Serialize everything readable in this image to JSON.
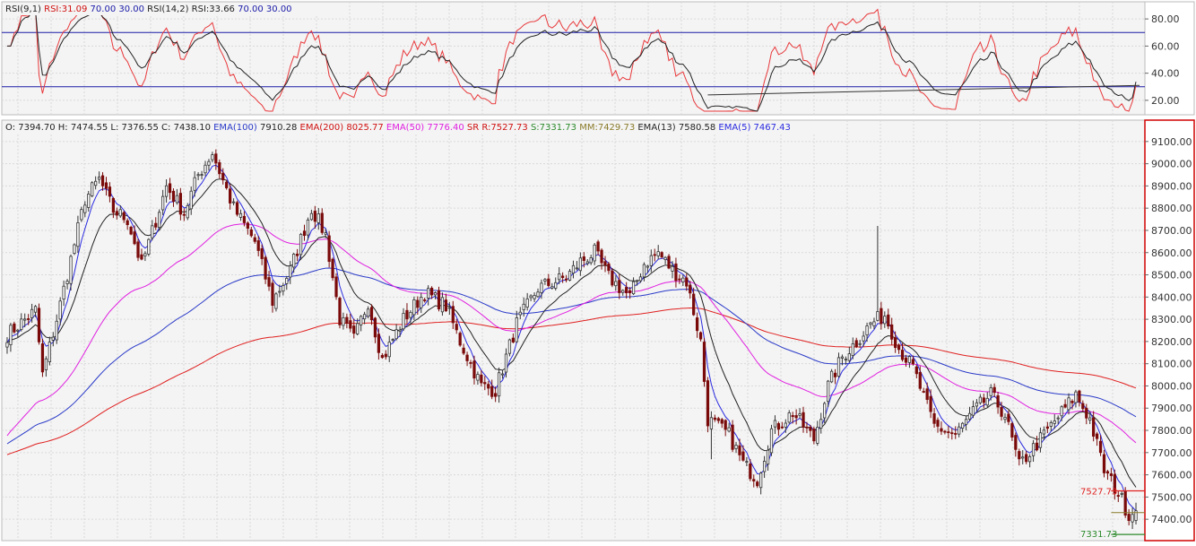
{
  "colors": {
    "background": "#f4f4f4",
    "panel_border": "#bbbbbb",
    "price_axis_border": "#d00000",
    "grid": "#d9d9d9",
    "rsi_fast": "#e8383b",
    "rsi_slow": "#222222",
    "rsi_levels": "#1a1aa8",
    "bull_candle": "#ffffff",
    "bear_candle": "#7a0b0b",
    "candle_outline": "#333333",
    "ema5": "#2a2ae0",
    "ema13": "#222222",
    "ema50": "#e020e0",
    "ema100": "#2a3ac8",
    "ema200": "#e02020",
    "sr_resistance": "#e02020",
    "sr_support": "#2c8a2c",
    "mm": "#8a7a2a"
  },
  "rsi_panel": {
    "legend": [
      {
        "text": "RSI(9,1)",
        "color": "#222222"
      },
      {
        "text": "RSI:31.09",
        "color": "#d01010"
      },
      {
        "text": "70.00",
        "color": "#1a1aa8"
      },
      {
        "text": "30.00",
        "color": "#1a1aa8"
      },
      {
        "text": "RSI(14,2)",
        "color": "#222222"
      },
      {
        "text": "RSI:33.66",
        "color": "#222222"
      },
      {
        "text": "70.00",
        "color": "#1a1aa8"
      },
      {
        "text": "30.00",
        "color": "#1a1aa8"
      }
    ],
    "ticks": [
      "80.00",
      "60.00",
      "40.00",
      "20.00"
    ]
  },
  "price_panel": {
    "legend": [
      {
        "text": "O: 7394.70",
        "color": "#222222"
      },
      {
        "text": "H: 7474.55",
        "color": "#222222"
      },
      {
        "text": "L: 7376.55",
        "color": "#222222"
      },
      {
        "text": "C: 7438.10",
        "color": "#222222"
      },
      {
        "text": "EMA(100)",
        "color": "#2a3ac8"
      },
      {
        "text": "7910.28",
        "color": "#222222"
      },
      {
        "text": "EMA(200)",
        "color": "#d01010"
      },
      {
        "text": "8025.77",
        "color": "#d01010"
      },
      {
        "text": "EMA(50)",
        "color": "#e020e0"
      },
      {
        "text": "7776.40",
        "color": "#e020e0"
      },
      {
        "text": "SR",
        "color": "#d01010"
      },
      {
        "text": "R:7527.73",
        "color": "#d01010"
      },
      {
        "text": "S:7331.73",
        "color": "#2c8a2c"
      },
      {
        "text": "MM:7429.73",
        "color": "#8a7a2a"
      },
      {
        "text": "EMA(13)",
        "color": "#222222"
      },
      {
        "text": "7580.58",
        "color": "#222222"
      },
      {
        "text": "EMA(5)",
        "color": "#2a2ae0"
      },
      {
        "text": "7467.43",
        "color": "#2a2ae0"
      }
    ],
    "ticks": [
      "9100.00",
      "9000.00",
      "8900.00",
      "8800.00",
      "8700.00",
      "8600.00",
      "8500.00",
      "8400.00",
      "8300.00",
      "8200.00",
      "8100.00",
      "8000.00",
      "7900.00",
      "7800.00",
      "7700.00",
      "7600.00",
      "7500.00",
      "7400.00"
    ],
    "sr_label": "7527.73",
    "support_label": "7331.73"
  },
  "chart_data": {
    "type": "candlestick",
    "title": "",
    "price_ylim": [
      7320,
      9180
    ],
    "rsi_ylim": [
      12,
      90
    ],
    "rsi_levels": [
      70,
      30
    ],
    "resistance": 7527.73,
    "support": 7331.73,
    "mm": 7429.73,
    "trendline": {
      "from_index": 198,
      "from_value": 24,
      "to_index": 320,
      "to_value": 31
    },
    "anchors": [
      [
        0,
        8230
      ],
      [
        8,
        8340
      ],
      [
        10,
        8050
      ],
      [
        14,
        8300
      ],
      [
        22,
        8840
      ],
      [
        26,
        8930
      ],
      [
        30,
        8790
      ],
      [
        34,
        8750
      ],
      [
        38,
        8540
      ],
      [
        45,
        8900
      ],
      [
        50,
        8780
      ],
      [
        54,
        8950
      ],
      [
        58,
        9050
      ],
      [
        64,
        8800
      ],
      [
        70,
        8650
      ],
      [
        75,
        8380
      ],
      [
        80,
        8520
      ],
      [
        86,
        8800
      ],
      [
        90,
        8680
      ],
      [
        94,
        8300
      ],
      [
        98,
        8210
      ],
      [
        102,
        8380
      ],
      [
        106,
        8120
      ],
      [
        112,
        8300
      ],
      [
        118,
        8420
      ],
      [
        124,
        8360
      ],
      [
        128,
        8200
      ],
      [
        134,
        8000
      ],
      [
        138,
        7980
      ],
      [
        144,
        8280
      ],
      [
        150,
        8440
      ],
      [
        158,
        8490
      ],
      [
        162,
        8560
      ],
      [
        166,
        8600
      ],
      [
        170,
        8490
      ],
      [
        176,
        8400
      ],
      [
        180,
        8550
      ],
      [
        184,
        8600
      ],
      [
        188,
        8520
      ],
      [
        192,
        8470
      ],
      [
        196,
        8200
      ],
      [
        198,
        7850
      ],
      [
        204,
        7780
      ],
      [
        208,
        7650
      ],
      [
        212,
        7580
      ],
      [
        216,
        7800
      ],
      [
        222,
        7880
      ],
      [
        228,
        7760
      ],
      [
        232,
        8000
      ],
      [
        236,
        8130
      ],
      [
        240,
        8200
      ],
      [
        244,
        8280
      ],
      [
        248,
        8320
      ],
      [
        252,
        8170
      ],
      [
        256,
        8080
      ],
      [
        262,
        7820
      ],
      [
        268,
        7780
      ],
      [
        274,
        7900
      ],
      [
        278,
        7960
      ],
      [
        282,
        7870
      ],
      [
        286,
        7640
      ],
      [
        290,
        7720
      ],
      [
        294,
        7800
      ],
      [
        298,
        7880
      ],
      [
        302,
        7960
      ],
      [
        306,
        7850
      ],
      [
        310,
        7620
      ],
      [
        314,
        7520
      ],
      [
        317,
        7420
      ],
      [
        319,
        7438
      ]
    ],
    "spikes": [
      {
        "index": 246,
        "high": 8720
      },
      {
        "index": 199,
        "low": 7670
      }
    ],
    "ema5": 7467.43,
    "ema13": 7580.58,
    "ema50": 7776.4,
    "ema100": 7910.28,
    "ema200": 8025.77,
    "last_candle": {
      "open": 7394.7,
      "high": 7474.55,
      "low": 7376.55,
      "close": 7438.1
    },
    "rsi9": 31.09,
    "rsi14": 33.66
  }
}
